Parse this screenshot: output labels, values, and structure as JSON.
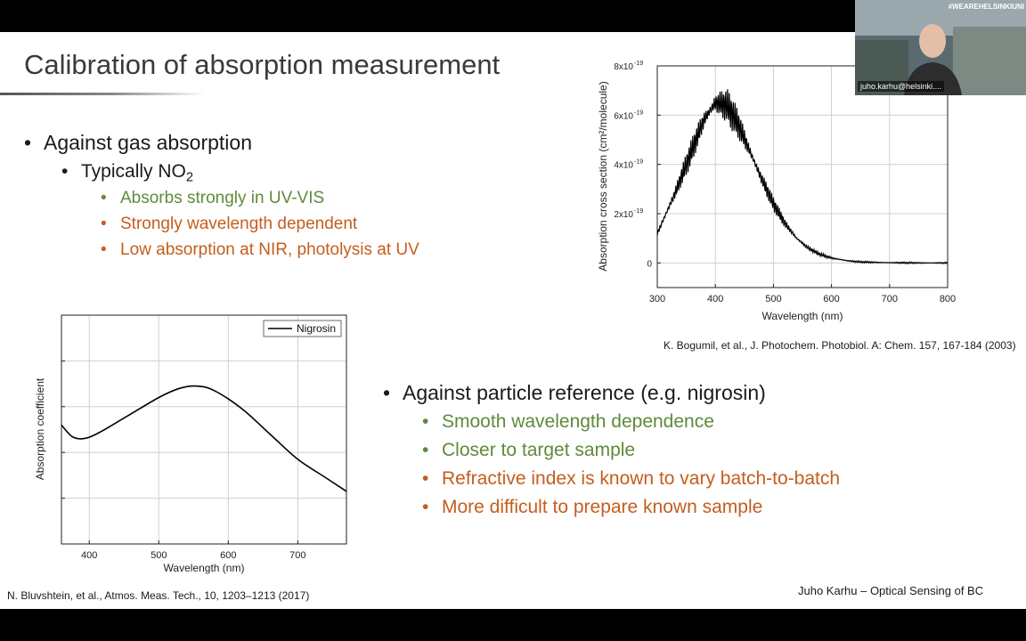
{
  "slide": {
    "title": "Calibration of absorption measurement",
    "bullet1": "Against gas absorption",
    "bullet1_sub_main": "Typically NO",
    "bullet1_sub_subscript": "2",
    "bullet1_items": [
      "Absorbs strongly in UV-VIS",
      "Strongly wavelength dependent",
      "Low absorption at NIR, photolysis at UV"
    ],
    "bullet2": "Against particle reference (e.g. nigrosin)",
    "bullet2_items": [
      "Smooth wavelength dependence",
      "Closer to target sample",
      "Refractive index is known to vary batch-to-batch",
      "More difficult to prepare known sample"
    ],
    "bullet_symbol": "•",
    "citation_top": "K. Bogumil, et al., J. Photochem. Photobiol. A: Chem. 157, 167-184 (2003)",
    "citation_bottom": "N. Bluvshtein, et al., Atmos. Meas. Tech., 10, 1203–1213 (2017)",
    "footer": "Juho Karhu – Optical Sensing of BC",
    "colors": {
      "green": "#5f8a3a",
      "orange": "#c45e1e"
    }
  },
  "video": {
    "hashtag": "#WEAREHELSINKIUNI",
    "name": "juho.karhu@helsinki...."
  },
  "chart_data": [
    {
      "type": "line",
      "xlabel": "Wavelength (nm)",
      "ylabel": "Absorption cross section (cm²/molecule)",
      "xlim": [
        300,
        800
      ],
      "ylim": [
        -1e-19,
        8e-19
      ],
      "xticks": [
        300,
        400,
        500,
        600,
        700,
        800
      ],
      "yticks": [
        0,
        2e-19,
        4e-19,
        6e-19,
        8e-19
      ],
      "ytick_labels": [
        {
          "mantissa": "0",
          "exp": ""
        },
        {
          "mantissa": "2x10",
          "exp": "-19"
        },
        {
          "mantissa": "4x10",
          "exp": "-19"
        },
        {
          "mantissa": "6x10",
          "exp": "-19"
        },
        {
          "mantissa": "8x10",
          "exp": "-19"
        }
      ],
      "grid": true,
      "x": [
        300,
        330,
        360,
        380,
        400,
        420,
        440,
        460,
        480,
        500,
        520,
        540,
        560,
        580,
        600,
        630,
        650,
        680,
        700,
        750,
        800
      ],
      "y": [
        1.2e-19,
        2.8e-19,
        4.6e-19,
        5.8e-19,
        6.5e-19,
        6.4e-19,
        5.6e-19,
        4.5e-19,
        3.4e-19,
        2.4e-19,
        1.6e-19,
        1e-19,
        6e-20,
        3.5e-20,
        2e-20,
        8e-21,
        4e-21,
        2e-21,
        1e-21,
        0.0,
        0.0
      ]
    },
    {
      "type": "line",
      "xlabel": "Wavelength (nm)",
      "ylabel": "Absorption coefficient",
      "xlim": [
        360,
        770
      ],
      "ylim": [
        0,
        100
      ],
      "xticks": [
        400,
        500,
        600,
        700
      ],
      "ytick_positions": [
        20,
        40,
        60,
        80
      ],
      "grid": true,
      "series": [
        {
          "name": "Nigrosin",
          "x": [
            360,
            375,
            390,
            410,
            450,
            500,
            530,
            555,
            580,
            620,
            660,
            700,
            740,
            770
          ],
          "y": [
            52,
            47,
            46,
            48,
            55,
            64,
            68,
            69,
            67,
            59,
            48,
            37,
            29,
            23
          ]
        }
      ]
    }
  ]
}
